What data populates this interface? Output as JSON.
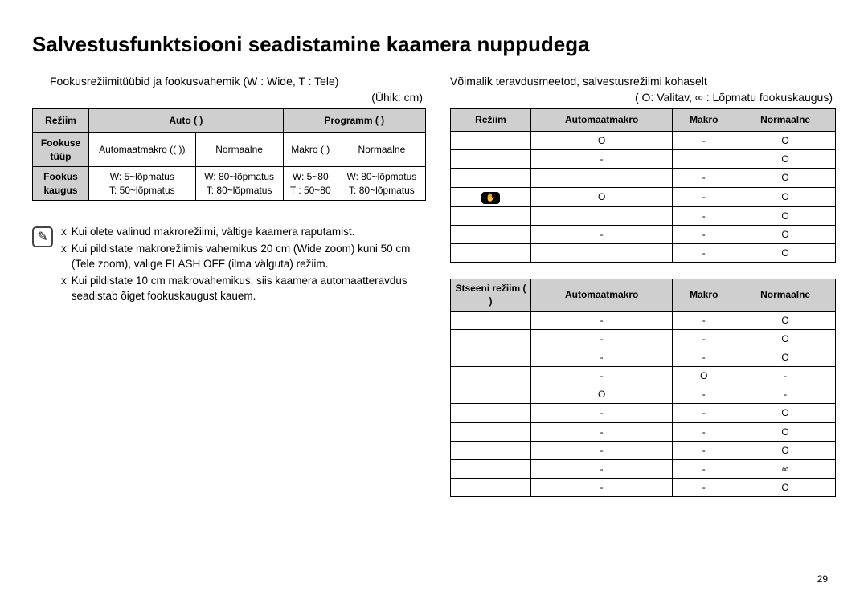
{
  "title": "Salvestusfunktsiooni seadistamine kaamera nuppudega",
  "left": {
    "intro": "Fookusrežiimitüübid ja fookusvahemik (W : Wide, T : Tele)",
    "unit": "(Ühik: cm)",
    "table": {
      "h_mode": "Režiim",
      "h_auto": "Auto (     )",
      "h_prog": "Programm (     )",
      "h_ftype": "Fookuse tüüp",
      "h_frange": "Fookus kaugus",
      "auto_macro": "Automaatmakro ((   ))",
      "normal1": "Normaalne",
      "makro": "Makro (  )",
      "normal2": "Normaalne",
      "r_auto_macro": "W: 5~lõpmatus\nT:  50~lõpmatus",
      "r_normal1": "W: 80~lõpmatus\nT: 80~lõpmatus",
      "r_makro": "W: 5~80\nT : 50~80",
      "r_normal2": "W: 80~lõpmatus\nT: 80~lõpmatus"
    },
    "notes": [
      "Kui olete valinud makrorežiimi, vältige kaamera raputamist.",
      "Kui pildistate makrorežiimis vahemikus 20 cm (Wide zoom) kuni 50 cm (Tele zoom), valige FLASH OFF (ilma välguta) režiim.",
      "Kui pildistate 10 cm makrovahemikus, siis kaamera automaatteravdus seadistab õiget fookuskaugust kauem."
    ]
  },
  "right": {
    "intro": "Võimalik teravdusmeetod, salvestusrežiimi kohaselt",
    "legend": "(   O: Valitav, ∞ : Lõpmatu fookuskaugus)",
    "t1": {
      "h_mode": "Režiim",
      "h_auto": "Automaatmakro",
      "h_makro": "Makro",
      "h_norm": "Normaalne",
      "rows": [
        {
          "icon": "",
          "a": "O",
          "m": "-",
          "n": "O"
        },
        {
          "icon": "",
          "a": "-",
          "m": "",
          "n": "O"
        },
        {
          "icon": "",
          "a": "",
          "m": "-",
          "n": "O"
        },
        {
          "icon": "dual",
          "a": "O",
          "m": "-",
          "n": "O"
        },
        {
          "icon": "",
          "a": "",
          "m": "-",
          "n": "O"
        },
        {
          "icon": "",
          "a": "-",
          "m": "-",
          "n": "O"
        },
        {
          "icon": "",
          "a": "",
          "m": "-",
          "n": "O"
        }
      ]
    },
    "t2": {
      "h_mode": "Stseeni režiim (       )",
      "h_auto": "Automaatmakro",
      "h_makro": "Makro",
      "h_norm": "Normaalne",
      "rows": [
        {
          "a": "-",
          "m": "-",
          "n": "O"
        },
        {
          "a": "-",
          "m": "-",
          "n": "O"
        },
        {
          "a": "-",
          "m": "-",
          "n": "O"
        },
        {
          "a": "-",
          "m": "O",
          "n": "-"
        },
        {
          "a": "O",
          "m": "-",
          "n": "-"
        },
        {
          "a": "-",
          "m": "-",
          "n": "O"
        },
        {
          "a": "-",
          "m": "-",
          "n": "O"
        },
        {
          "a": "-",
          "m": "-",
          "n": "O"
        },
        {
          "a": "-",
          "m": "-",
          "n": "∞"
        },
        {
          "a": "-",
          "m": "-",
          "n": "O"
        }
      ]
    }
  },
  "pageNumber": "29"
}
